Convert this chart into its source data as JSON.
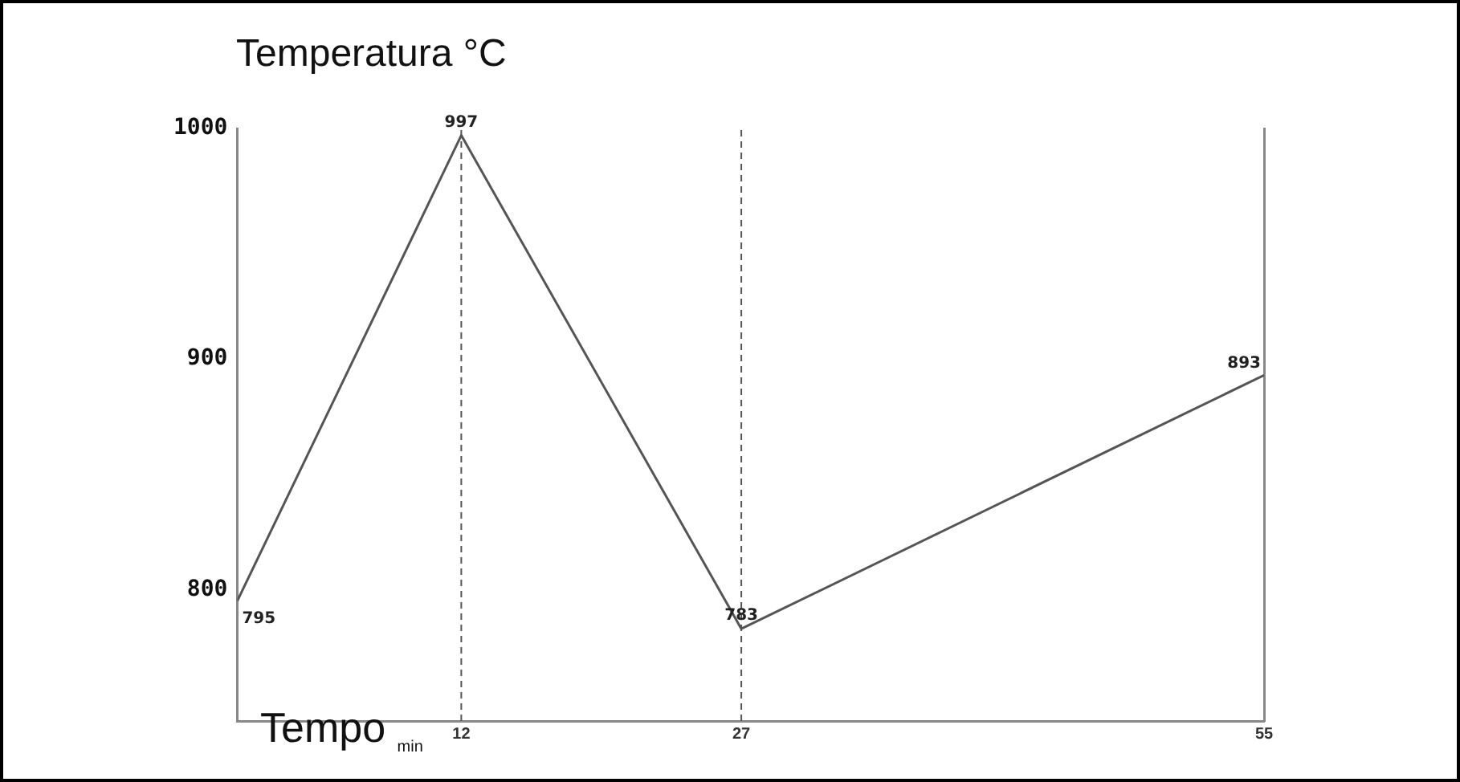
{
  "chart_data": {
    "type": "line",
    "ylabel": "Temperatura °C",
    "xlabel": "Tempo $_{min}$",
    "x": [
      0,
      12,
      27,
      55
    ],
    "series": [
      {
        "color": "#555555",
        "values": [
          795,
          997,
          783,
          893
        ]
      }
    ],
    "xlim": [
      0,
      55
    ],
    "xticks": [
      12,
      27,
      55
    ],
    "ylim": [
      743,
      1000
    ],
    "yticks": [
      800,
      900,
      1000
    ],
    "grid": false,
    "legend": false,
    "marker": "none",
    "line_style": "solid",
    "data_labels": true,
    "ref_lines": [
      {
        "axis": "x",
        "value": 12,
        "label": null,
        "line_style": "dashed",
        "color": "#555555"
      },
      {
        "axis": "x",
        "value": 27,
        "label": null,
        "line_style": "dashed",
        "color": "#555555"
      }
    ]
  }
}
